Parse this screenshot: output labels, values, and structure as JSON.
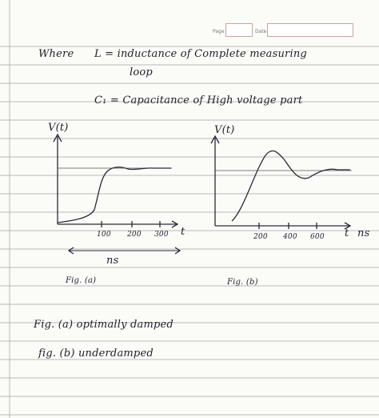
{
  "header": {
    "page_label": "Page",
    "date_label": "Date"
  },
  "lines": {
    "where": "Where",
    "L_def": "L = inductance of Complete measuring",
    "L_def_cont": "loop",
    "C1_def": "C₁ = Capacitance of High voltage part"
  },
  "graph_a": {
    "y_label": "V(t)",
    "x_ticks": [
      "100",
      "200",
      "300"
    ],
    "x_axis_label": "t",
    "unit_label": "ns",
    "caption": "Fig. (a)"
  },
  "graph_b": {
    "y_label": "V(t)",
    "x_ticks": [
      "200",
      "400",
      "600"
    ],
    "x_axis_label": "t",
    "unit_label": "ns",
    "caption": "Fig. (b)"
  },
  "notes": {
    "fig_a": "Fig. (a) optimally damped",
    "fig_b": "fig. (b) underdamped"
  }
}
